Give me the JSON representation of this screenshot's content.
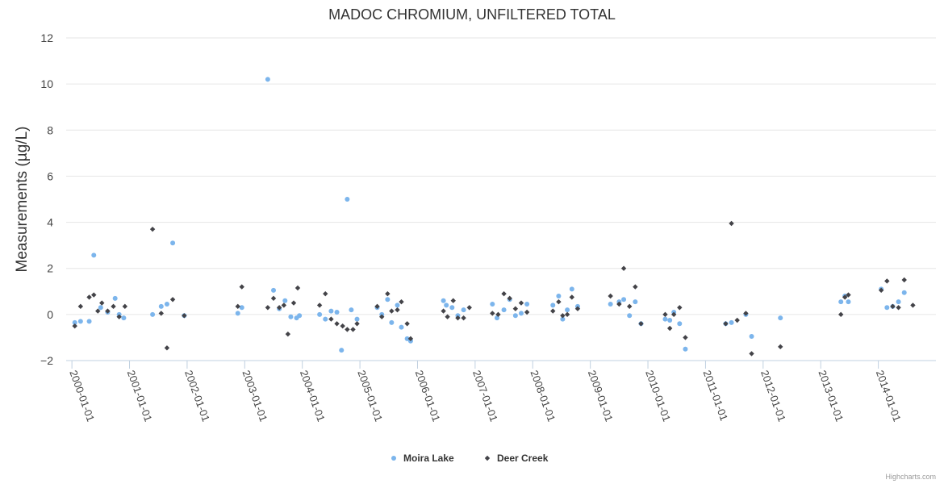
{
  "chart_data": {
    "type": "scatter",
    "title": "MADOC CHROMIUM, UNFILTERED TOTAL",
    "xlabel": "",
    "ylabel": "Measurements (µg/L)",
    "ylim": [
      -2,
      12
    ],
    "yticks": [
      -2,
      0,
      2,
      4,
      6,
      8,
      10,
      12
    ],
    "xlim": [
      1999.9,
      2015.0
    ],
    "xticks": [
      {
        "label": "2000-01-01",
        "value": 2000.0
      },
      {
        "label": "2001-01-01",
        "value": 2001.0
      },
      {
        "label": "2002-01-01",
        "value": 2002.0
      },
      {
        "label": "2003-01-01",
        "value": 2003.0
      },
      {
        "label": "2004-01-01",
        "value": 2004.0
      },
      {
        "label": "2005-01-01",
        "value": 2005.0
      },
      {
        "label": "2006-01-01",
        "value": 2006.0
      },
      {
        "label": "2007-01-01",
        "value": 2007.0
      },
      {
        "label": "2008-01-01",
        "value": 2008.0
      },
      {
        "label": "2009-01-01",
        "value": 2009.0
      },
      {
        "label": "2010-01-01",
        "value": 2010.0
      },
      {
        "label": "2011-01-01",
        "value": 2011.0
      },
      {
        "label": "2012-01-01",
        "value": 2012.0
      },
      {
        "label": "2013-01-01",
        "value": 2013.0
      },
      {
        "label": "2014-01-01",
        "value": 2014.0
      }
    ],
    "grid": true,
    "legend_position": "bottom-center",
    "series": [
      {
        "name": "Moira Lake",
        "color": "#7cb5ec",
        "marker": "circle",
        "points": [
          [
            2000.05,
            -0.35
          ],
          [
            2000.15,
            -0.3
          ],
          [
            2000.3,
            -0.3
          ],
          [
            2000.38,
            2.57
          ],
          [
            2000.5,
            0.3
          ],
          [
            2000.62,
            0.1
          ],
          [
            2000.75,
            0.7
          ],
          [
            2000.82,
            0.0
          ],
          [
            2000.9,
            -0.15
          ],
          [
            2001.4,
            0.0
          ],
          [
            2001.55,
            0.35
          ],
          [
            2001.65,
            0.45
          ],
          [
            2001.75,
            3.1
          ],
          [
            2001.95,
            -0.05
          ],
          [
            2002.88,
            0.05
          ],
          [
            2002.95,
            0.3
          ],
          [
            2003.4,
            10.2
          ],
          [
            2003.5,
            1.05
          ],
          [
            2003.6,
            0.25
          ],
          [
            2003.7,
            0.6
          ],
          [
            2003.8,
            -0.1
          ],
          [
            2003.9,
            -0.15
          ],
          [
            2003.95,
            -0.05
          ],
          [
            2004.3,
            0.0
          ],
          [
            2004.4,
            -0.2
          ],
          [
            2004.5,
            0.15
          ],
          [
            2004.6,
            0.1
          ],
          [
            2004.68,
            -1.55
          ],
          [
            2004.78,
            5.0
          ],
          [
            2004.85,
            0.2
          ],
          [
            2004.95,
            -0.2
          ],
          [
            2005.3,
            0.3
          ],
          [
            2005.38,
            0.0
          ],
          [
            2005.48,
            0.65
          ],
          [
            2005.55,
            -0.35
          ],
          [
            2005.65,
            0.4
          ],
          [
            2005.72,
            -0.55
          ],
          [
            2005.82,
            -1.05
          ],
          [
            2005.88,
            -1.15
          ],
          [
            2006.45,
            0.6
          ],
          [
            2006.5,
            0.4
          ],
          [
            2006.6,
            0.3
          ],
          [
            2006.7,
            -0.05
          ],
          [
            2006.8,
            0.2
          ],
          [
            2007.3,
            0.45
          ],
          [
            2007.38,
            -0.15
          ],
          [
            2007.5,
            0.2
          ],
          [
            2007.6,
            0.65
          ],
          [
            2007.7,
            -0.05
          ],
          [
            2007.8,
            0.05
          ],
          [
            2007.9,
            0.45
          ],
          [
            2008.35,
            0.4
          ],
          [
            2008.45,
            0.8
          ],
          [
            2008.52,
            -0.2
          ],
          [
            2008.6,
            0.2
          ],
          [
            2008.68,
            1.1
          ],
          [
            2008.78,
            0.35
          ],
          [
            2009.35,
            0.45
          ],
          [
            2009.5,
            0.55
          ],
          [
            2009.58,
            0.65
          ],
          [
            2009.68,
            -0.05
          ],
          [
            2009.78,
            0.55
          ],
          [
            2009.88,
            -0.4
          ],
          [
            2010.3,
            -0.2
          ],
          [
            2010.38,
            -0.25
          ],
          [
            2010.45,
            0.1
          ],
          [
            2010.55,
            -0.4
          ],
          [
            2010.65,
            -1.5
          ],
          [
            2011.35,
            -0.4
          ],
          [
            2011.45,
            -0.35
          ],
          [
            2011.7,
            0.0
          ],
          [
            2011.8,
            -0.95
          ],
          [
            2012.3,
            -0.15
          ],
          [
            2013.35,
            0.55
          ],
          [
            2013.42,
            0.8
          ],
          [
            2013.48,
            0.55
          ],
          [
            2014.05,
            1.1
          ],
          [
            2014.15,
            0.3
          ],
          [
            2014.25,
            0.35
          ],
          [
            2014.35,
            0.55
          ],
          [
            2014.45,
            0.95
          ]
        ]
      },
      {
        "name": "Deer Creek",
        "color": "#434348",
        "marker": "diamond",
        "points": [
          [
            2000.05,
            -0.5
          ],
          [
            2000.15,
            0.35
          ],
          [
            2000.3,
            0.75
          ],
          [
            2000.38,
            0.85
          ],
          [
            2000.45,
            0.15
          ],
          [
            2000.52,
            0.5
          ],
          [
            2000.62,
            0.15
          ],
          [
            2000.72,
            0.35
          ],
          [
            2000.82,
            -0.1
          ],
          [
            2000.92,
            0.35
          ],
          [
            2001.4,
            3.7
          ],
          [
            2001.55,
            0.05
          ],
          [
            2001.65,
            -1.45
          ],
          [
            2001.75,
            0.65
          ],
          [
            2001.95,
            -0.05
          ],
          [
            2002.88,
            0.35
          ],
          [
            2002.95,
            1.2
          ],
          [
            2003.4,
            0.3
          ],
          [
            2003.5,
            0.7
          ],
          [
            2003.6,
            0.3
          ],
          [
            2003.68,
            0.4
          ],
          [
            2003.75,
            -0.85
          ],
          [
            2003.85,
            0.5
          ],
          [
            2003.92,
            1.15
          ],
          [
            2004.3,
            0.4
          ],
          [
            2004.4,
            0.9
          ],
          [
            2004.5,
            -0.2
          ],
          [
            2004.6,
            -0.4
          ],
          [
            2004.7,
            -0.5
          ],
          [
            2004.78,
            -0.65
          ],
          [
            2004.88,
            -0.65
          ],
          [
            2004.95,
            -0.4
          ],
          [
            2005.3,
            0.35
          ],
          [
            2005.38,
            -0.1
          ],
          [
            2005.48,
            0.9
          ],
          [
            2005.55,
            0.15
          ],
          [
            2005.65,
            0.2
          ],
          [
            2005.72,
            0.55
          ],
          [
            2005.82,
            -0.4
          ],
          [
            2005.88,
            -1.05
          ],
          [
            2006.45,
            0.15
          ],
          [
            2006.52,
            -0.1
          ],
          [
            2006.62,
            0.6
          ],
          [
            2006.7,
            -0.15
          ],
          [
            2006.8,
            -0.15
          ],
          [
            2006.9,
            0.3
          ],
          [
            2007.3,
            0.05
          ],
          [
            2007.4,
            0.0
          ],
          [
            2007.5,
            0.9
          ],
          [
            2007.6,
            0.7
          ],
          [
            2007.7,
            0.25
          ],
          [
            2007.8,
            0.5
          ],
          [
            2007.9,
            0.1
          ],
          [
            2008.35,
            0.15
          ],
          [
            2008.45,
            0.55
          ],
          [
            2008.52,
            -0.05
          ],
          [
            2008.6,
            0.0
          ],
          [
            2008.68,
            0.75
          ],
          [
            2008.78,
            0.25
          ],
          [
            2009.35,
            0.8
          ],
          [
            2009.5,
            0.45
          ],
          [
            2009.58,
            2.0
          ],
          [
            2009.68,
            0.35
          ],
          [
            2009.78,
            1.2
          ],
          [
            2009.88,
            -0.4
          ],
          [
            2010.3,
            0.0
          ],
          [
            2010.38,
            -0.6
          ],
          [
            2010.45,
            0.0
          ],
          [
            2010.55,
            0.3
          ],
          [
            2010.65,
            -1.0
          ],
          [
            2011.35,
            -0.4
          ],
          [
            2011.45,
            3.95
          ],
          [
            2011.55,
            -0.25
          ],
          [
            2011.7,
            0.05
          ],
          [
            2011.8,
            -1.7
          ],
          [
            2012.3,
            -1.4
          ],
          [
            2013.35,
            0.0
          ],
          [
            2013.42,
            0.75
          ],
          [
            2013.48,
            0.85
          ],
          [
            2014.05,
            1.05
          ],
          [
            2014.15,
            1.45
          ],
          [
            2014.25,
            0.35
          ],
          [
            2014.35,
            0.3
          ],
          [
            2014.45,
            1.5
          ],
          [
            2014.6,
            0.4
          ]
        ]
      }
    ],
    "credits": "Highcharts.com"
  }
}
